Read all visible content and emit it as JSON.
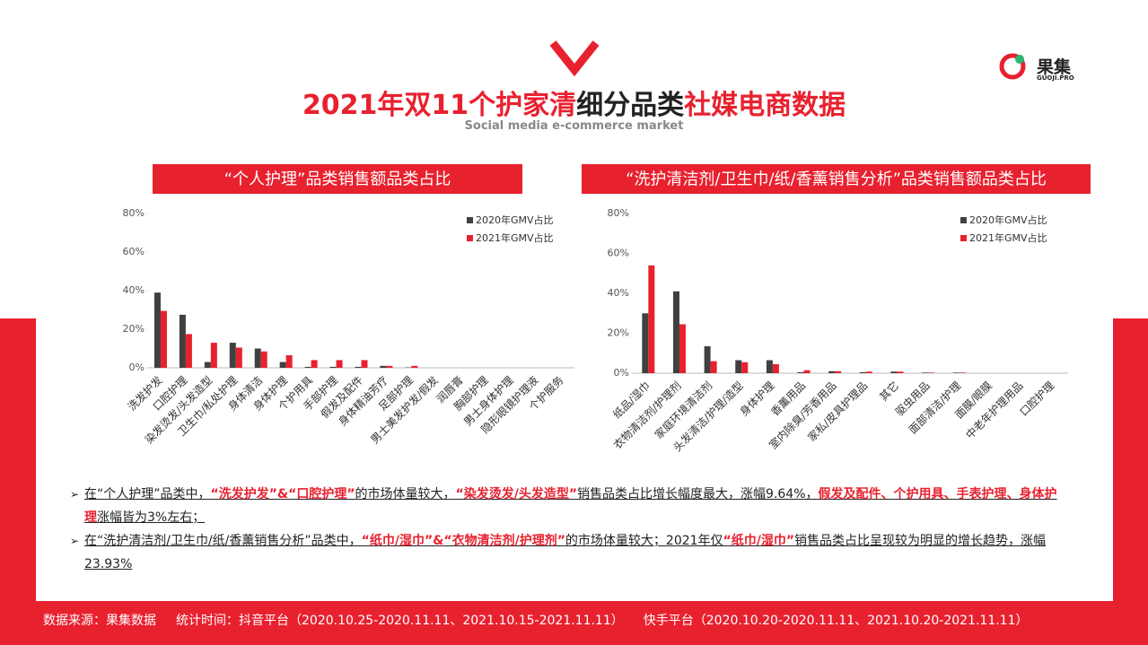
{
  "header": {
    "title": [
      {
        "text": "2021年双11个护家清",
        "emph": true
      },
      {
        "text": "细分品类",
        "emph": false
      },
      {
        "text": "社媒电商数据",
        "emph": true
      }
    ],
    "subtitle": "Social media e-commerce market",
    "logo": "果集",
    "logo_sub": "GUOJI.PRO"
  },
  "chart_data": [
    {
      "type": "bar",
      "title": "“个人护理”品类销售额品类占比",
      "categories": [
        "洗发护发",
        "口腔护理",
        "染发烫发/头发造型",
        "卫生巾/私处护理",
        "身体清洁",
        "身体护理",
        "个护用具",
        "手部护理",
        "假发及配件",
        "身体精油芳疗",
        "足部护理",
        "男士美发护发/假发",
        "润唇膏",
        "胸部护理",
        "男士身体护理",
        "隐形眼镜护理液",
        "个护服务"
      ],
      "series": [
        {
          "name": "2020年GMV占比",
          "color": "#404040",
          "values": [
            39,
            27.5,
            3,
            13,
            10,
            3,
            0.5,
            0.5,
            0.5,
            1,
            0.2,
            0,
            0,
            0,
            0,
            0,
            0
          ]
        },
        {
          "name": "2021年GMV占比",
          "color": "#e8212f",
          "values": [
            29.5,
            17.5,
            13,
            10.5,
            8.5,
            6.5,
            4,
            4,
            4,
            1,
            1,
            0,
            0,
            0,
            0,
            0,
            0
          ]
        }
      ],
      "ylim": [
        0,
        80
      ],
      "yticks": [
        {
          "value": 0,
          "label": "0%"
        },
        {
          "value": 20,
          "label": "20%"
        },
        {
          "value": 40,
          "label": "40%"
        },
        {
          "value": 60,
          "label": "60%"
        },
        {
          "value": 80,
          "label": "80%"
        }
      ],
      "legend": "top-right"
    },
    {
      "type": "bar",
      "title": "“洗护清洁剂/卫生巾/纸/香薰销售分析”品类销售额品类占比",
      "categories": [
        "纸品/湿巾",
        "衣物清洁剂/护理剂",
        "家庭环境清洁剂",
        "头发清洁/护理/造型",
        "身体护理",
        "香薰用品",
        "室内除臭/芳香用品",
        "家私/皮具护理品",
        "其它",
        "驱虫用品",
        "面部清洁/护理",
        "面膜/眼膜",
        "中老年护理用品",
        "口腔护理"
      ],
      "series": [
        {
          "name": "2020年GMV占比",
          "color": "#404040",
          "values": [
            30,
            41,
            13.5,
            6.5,
            6.5,
            0.5,
            1,
            0.5,
            0.8,
            0.3,
            0.3,
            0,
            0,
            0
          ]
        },
        {
          "name": "2021年GMV占比",
          "color": "#e8212f",
          "values": [
            54,
            24.5,
            6,
            5.5,
            4.5,
            1.5,
            1,
            0.8,
            0.8,
            0.3,
            0.3,
            0,
            0,
            0
          ]
        }
      ],
      "ylim": [
        0,
        80
      ],
      "yticks": [
        {
          "value": 0,
          "label": "0%"
        },
        {
          "value": 20,
          "label": "20%"
        },
        {
          "value": 40,
          "label": "40%"
        },
        {
          "value": 60,
          "label": "60%"
        },
        {
          "value": 80,
          "label": "80%"
        }
      ],
      "legend": "top-right"
    }
  ],
  "bullets": [
    [
      {
        "text": "在“个人护理”品类中，",
        "emph": false
      },
      {
        "text": "“洗发护发”&“口腔护理”",
        "emph": true
      },
      {
        "text": "的市场体量较大，",
        "emph": false
      },
      {
        "text": "“染发烫发/头发造型”",
        "emph": true
      },
      {
        "text": "销售品类占比增长幅度最大，涨幅9.64%，",
        "emph": false
      },
      {
        "text": "假发及配件、个护用具、手表护理、身体护理",
        "emph": true
      },
      {
        "text": "涨幅皆为3%左右；",
        "emph": false
      }
    ],
    [
      {
        "text": "在“洗护清洁剂/卫生巾/纸/香薰销售分析”品类中，",
        "emph": false
      },
      {
        "text": "“纸巾/湿巾”&“衣物清洁剂/护理剂”",
        "emph": true
      },
      {
        "text": "的市场体量较大；2021年仅",
        "emph": false
      },
      {
        "text": "“纸巾/湿巾”",
        "emph": true
      },
      {
        "text": "销售品类占比呈现较为明显的增长趋势，涨幅23.93%",
        "emph": false
      }
    ]
  ],
  "footer": [
    "数据来源：果集数据",
    "统计时间：抖音平台（2020.10.25-2020.11.11、2021.10.15-2021.11.11）",
    "快手平台（2020.10.20-2020.11.11、2021.10.20-2021.11.11）"
  ]
}
